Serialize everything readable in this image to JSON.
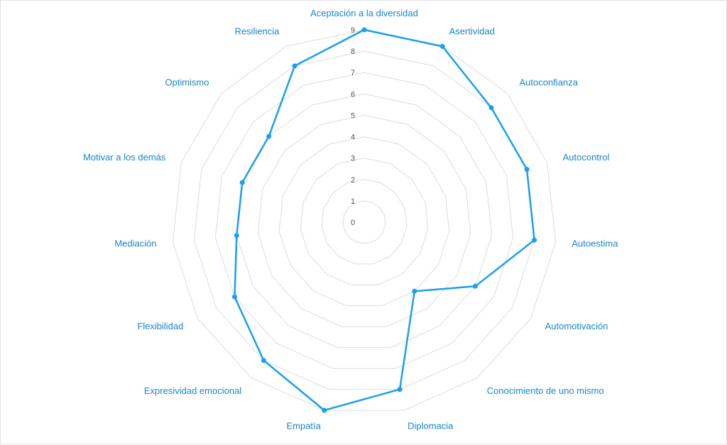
{
  "chart_data": {
    "type": "radar",
    "title": "",
    "categories": [
      "Aceptación a la diversidad",
      "Asertividad",
      "Autoconfianza",
      "Autocontrol",
      "Autoestima",
      "Automotivación",
      "Conocimiento de uno mismo",
      "Diplomacia",
      "Empatía",
      "Expresividad emocional",
      "Flexibilidad",
      "Mediación",
      "Motivar a los demás",
      "Optimismo",
      "Resiliencia"
    ],
    "series": [
      {
        "values": [
          9,
          9,
          8,
          8,
          8,
          6,
          4,
          8,
          9,
          8,
          7,
          6,
          6,
          6,
          8
        ]
      }
    ],
    "rlim": [
      0,
      9
    ],
    "ticks": [
      "0",
      "1",
      "2",
      "3",
      "4",
      "5",
      "6",
      "7",
      "8",
      "9"
    ],
    "grid": true,
    "colors": {
      "series": "#1a9ff0",
      "grid": "#dcdcdc",
      "label": "#1a85c8",
      "tick": "#555555"
    }
  }
}
